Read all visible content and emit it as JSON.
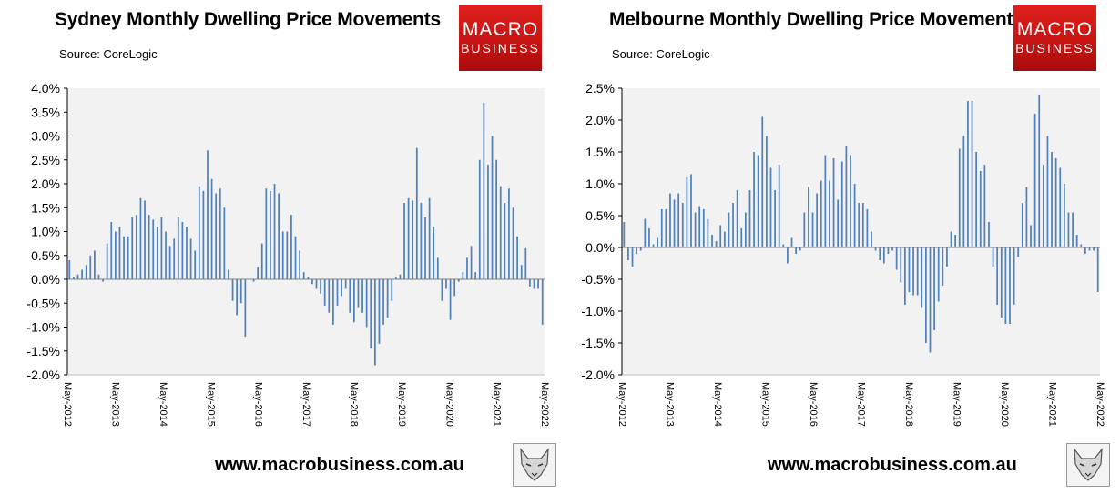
{
  "charts": [
    {
      "title": "Sydney Monthly Dwelling Price Movements",
      "source": "Source: CoreLogic",
      "logo": {
        "line1": "MACRO",
        "line2": "BUSINESS"
      },
      "footer": "www.macrobusiness.com.au"
    },
    {
      "title": "Melbourne Monthly Dwelling Price Movements",
      "source": "Source: CoreLogic",
      "logo": {
        "line1": "MACRO",
        "line2": "BUSINESS"
      },
      "footer": "www.macrobusiness.com.au"
    }
  ],
  "colors": {
    "bar": "#4f81bd",
    "plot_bg": "#f2f2f2",
    "logo_red": "#d7191c",
    "axis": "#000000"
  },
  "chart_data": [
    {
      "type": "bar",
      "title": "Sydney Monthly Dwelling Price Movements",
      "xlabel": "",
      "ylabel": "",
      "ylim": [
        -2.0,
        4.0
      ],
      "y_ticks": [
        -2.0,
        -1.5,
        -1.0,
        -0.5,
        0.0,
        0.5,
        1.0,
        1.5,
        2.0,
        2.5,
        3.0,
        3.5,
        4.0
      ],
      "y_tick_labels": [
        "-2.0%",
        "-1.5%",
        "-1.0%",
        "-0.5%",
        "0.0%",
        "0.5%",
        "1.0%",
        "1.5%",
        "2.0%",
        "2.5%",
        "3.0%",
        "3.5%",
        "4.0%"
      ],
      "x_tick_labels": [
        "May-2012",
        "May-2013",
        "May-2014",
        "May-2015",
        "May-2016",
        "May-2017",
        "May-2018",
        "May-2019",
        "May-2020",
        "May-2021",
        "May-2022"
      ],
      "start": "May-2012",
      "end": "May-2022",
      "grid": false,
      "values": [
        0.4,
        0.05,
        0.1,
        0.2,
        0.3,
        0.5,
        0.6,
        0.1,
        -0.05,
        0.75,
        1.2,
        1.0,
        1.1,
        0.9,
        0.9,
        1.3,
        1.35,
        1.7,
        1.65,
        1.35,
        1.25,
        1.1,
        1.3,
        1.0,
        0.7,
        0.85,
        1.3,
        1.2,
        1.1,
        0.85,
        0.6,
        1.95,
        1.85,
        2.7,
        2.1,
        1.8,
        1.9,
        1.5,
        0.2,
        -0.45,
        -0.75,
        -0.5,
        -1.2,
        0.0,
        -0.05,
        0.25,
        0.75,
        1.9,
        1.85,
        2.0,
        1.8,
        1.0,
        1.0,
        1.35,
        0.9,
        0.6,
        0.15,
        0.05,
        -0.1,
        -0.2,
        -0.3,
        -0.55,
        -0.7,
        -0.95,
        -0.55,
        -0.35,
        -0.2,
        -0.7,
        -0.9,
        -0.6,
        -0.7,
        -1.0,
        -1.45,
        -1.8,
        -1.35,
        -0.95,
        -0.8,
        -0.45,
        0.05,
        0.1,
        1.6,
        1.7,
        1.65,
        2.75,
        1.6,
        1.3,
        1.7,
        1.1,
        0.45,
        -0.45,
        -0.2,
        -0.85,
        -0.35,
        -0.05,
        0.15,
        0.45,
        0.7,
        0.15,
        2.5,
        3.7,
        2.4,
        3.0,
        2.5,
        1.95,
        1.6,
        1.9,
        1.5,
        0.9,
        0.3,
        0.65,
        -0.15,
        -0.2,
        -0.2,
        -0.95
      ]
    },
    {
      "type": "bar",
      "title": "Melbourne Monthly Dwelling Price Movements",
      "xlabel": "",
      "ylabel": "",
      "ylim": [
        -2.0,
        2.5
      ],
      "y_ticks": [
        -2.0,
        -1.5,
        -1.0,
        -0.5,
        0.0,
        0.5,
        1.0,
        1.5,
        2.0,
        2.5
      ],
      "y_tick_labels": [
        "-2.0%",
        "-1.5%",
        "-1.0%",
        "-0.5%",
        "0.0%",
        "0.5%",
        "1.0%",
        "1.5%",
        "2.0%",
        "2.5%"
      ],
      "x_tick_labels": [
        "May-2012",
        "May-2013",
        "May-2014",
        "May-2015",
        "May-2016",
        "May-2017",
        "May-2018",
        "May-2019",
        "May-2020",
        "May-2021",
        "May-2022"
      ],
      "start": "May-2012",
      "end": "May-2022",
      "grid": false,
      "values": [
        0.4,
        -0.2,
        -0.3,
        -0.1,
        -0.05,
        0.45,
        0.3,
        0.05,
        0.15,
        0.6,
        0.6,
        0.85,
        0.75,
        0.85,
        0.7,
        1.1,
        1.15,
        0.55,
        0.65,
        0.6,
        0.45,
        0.2,
        0.1,
        0.35,
        0.25,
        0.55,
        0.7,
        0.9,
        0.3,
        0.55,
        0.9,
        1.5,
        1.45,
        2.05,
        1.75,
        1.25,
        0.9,
        1.3,
        0.05,
        -0.25,
        0.15,
        -0.1,
        -0.05,
        0.55,
        0.95,
        0.55,
        0.85,
        1.05,
        1.45,
        1.05,
        1.4,
        0.75,
        1.35,
        1.6,
        1.45,
        1.0,
        0.7,
        0.7,
        0.6,
        0.25,
        -0.05,
        -0.2,
        -0.25,
        -0.1,
        -0.05,
        -0.35,
        -0.55,
        -0.9,
        -0.7,
        -0.75,
        -0.75,
        -0.95,
        -1.5,
        -1.65,
        -1.3,
        -0.85,
        -0.6,
        -0.3,
        0.25,
        0.2,
        1.55,
        1.75,
        2.3,
        2.3,
        1.5,
        1.2,
        1.3,
        0.4,
        -0.3,
        -0.9,
        -1.1,
        -1.2,
        -1.2,
        -0.9,
        -0.15,
        0.7,
        0.95,
        0.35,
        2.1,
        2.4,
        1.3,
        1.75,
        1.5,
        1.4,
        1.25,
        1.0,
        0.55,
        0.55,
        0.2,
        0.05,
        -0.1,
        -0.05,
        -0.05,
        -0.7
      ]
    }
  ]
}
